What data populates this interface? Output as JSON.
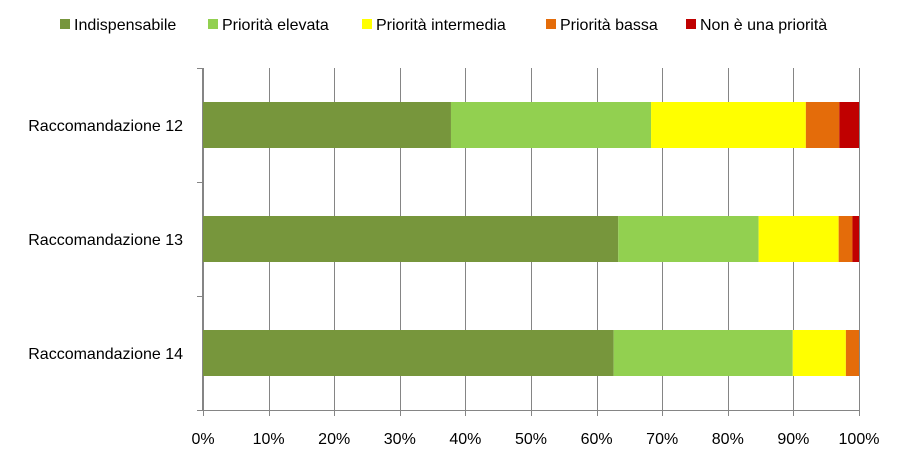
{
  "chart_data": {
    "type": "bar",
    "orientation": "horizontal",
    "stacked": "percent",
    "title": "",
    "xlabel": "",
    "ylabel": "",
    "categories": [
      "Raccomandazione 12",
      "Raccomandazione 13",
      "Raccomandazione 14"
    ],
    "series": [
      {
        "name": "Indispensabile",
        "color": "#77963c",
        "values": [
          37.8,
          63.3,
          62.6
        ]
      },
      {
        "name": "Priorità elevata",
        "color": "#92d050",
        "values": [
          30.5,
          21.4,
          27.3
        ]
      },
      {
        "name": "Priorità intermedia",
        "color": "#ffff00",
        "values": [
          23.6,
          12.2,
          8.1
        ]
      },
      {
        "name": "Priorità bassa",
        "color": "#e46c0a",
        "values": [
          5.1,
          2.1,
          2.0
        ]
      },
      {
        "name": "Non è una priorità",
        "color": "#c00000",
        "values": [
          3.0,
          1.0,
          0.0
        ]
      }
    ],
    "xlim": [
      0,
      100
    ],
    "x_ticks": [
      "0%",
      "10%",
      "20%",
      "30%",
      "40%",
      "50%",
      "60%",
      "70%",
      "80%",
      "90%",
      "100%"
    ],
    "grid": "vertical",
    "legend": "top"
  }
}
